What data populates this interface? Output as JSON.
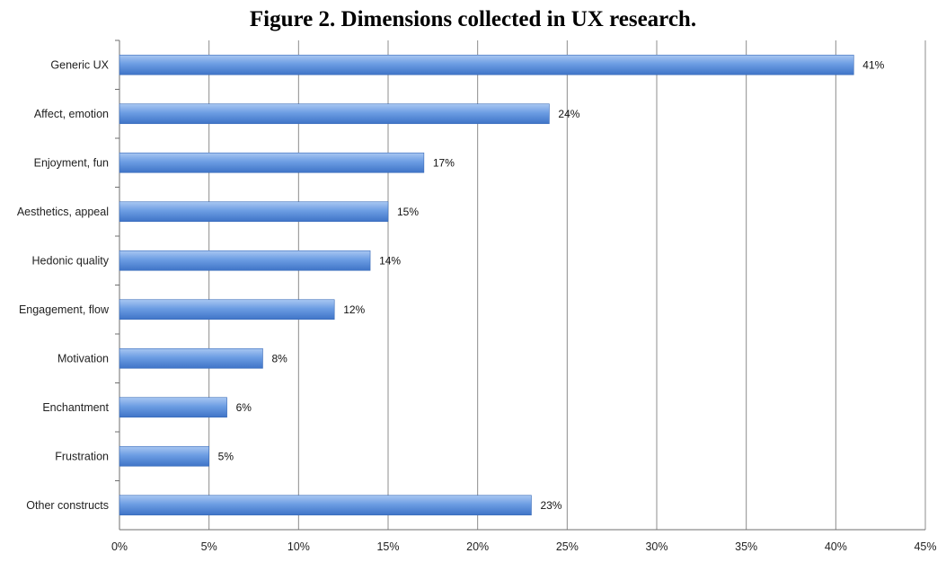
{
  "chart_data": {
    "type": "bar",
    "orientation": "horizontal",
    "title": "Figure 2. Dimensions collected in UX research.",
    "categories": [
      "Generic UX",
      "Affect, emotion",
      "Enjoyment, fun",
      "Aesthetics, appeal",
      "Hedonic quality",
      "Engagement, flow",
      "Motivation",
      "Enchantment",
      "Frustration",
      "Other constructs"
    ],
    "values": [
      41,
      24,
      17,
      15,
      14,
      12,
      8,
      6,
      5,
      23
    ],
    "data_labels": [
      "41%",
      "24%",
      "17%",
      "15%",
      "14%",
      "12%",
      "8%",
      "6%",
      "5%",
      "23%"
    ],
    "xlim": [
      0,
      45
    ],
    "xticks": [
      0,
      5,
      10,
      15,
      20,
      25,
      30,
      35,
      40,
      45
    ],
    "xtick_labels": [
      "0%",
      "5%",
      "10%",
      "15%",
      "20%",
      "25%",
      "30%",
      "35%",
      "40%",
      "45%"
    ],
    "grid": true,
    "bar_color": "#5b8fd9",
    "grid_color": "#8c8c8c"
  }
}
